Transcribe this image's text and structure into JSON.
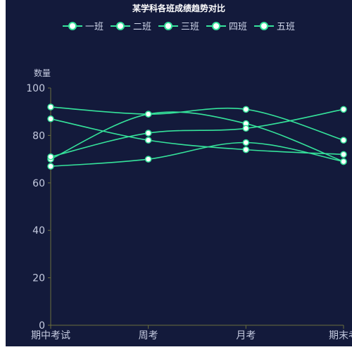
{
  "chart_data": {
    "type": "line",
    "title": "某学科各班成绩趋势对比",
    "xlabel": "",
    "ylabel": "数量",
    "x": [
      "期中考试",
      "周考",
      "月考",
      "期末考"
    ],
    "yticks": [
      0,
      20,
      40,
      60,
      80,
      100
    ],
    "ylim": [
      0,
      100
    ],
    "grid": false,
    "legend_position": "top",
    "colors": {
      "line": "#35e39b",
      "marker_fill": "#ffffff",
      "axis": "#6b6f3d",
      "background": "#131a3b"
    },
    "series": [
      {
        "name": "一班",
        "values": [
          70,
          89,
          85,
          69
        ]
      },
      {
        "name": "二班",
        "values": [
          92,
          89,
          91,
          78
        ]
      },
      {
        "name": "三班",
        "values": [
          67,
          70,
          77,
          69
        ]
      },
      {
        "name": "四班",
        "values": [
          71,
          81,
          83,
          91
        ]
      },
      {
        "name": "五班",
        "values": [
          87,
          78,
          74,
          72
        ]
      }
    ]
  }
}
